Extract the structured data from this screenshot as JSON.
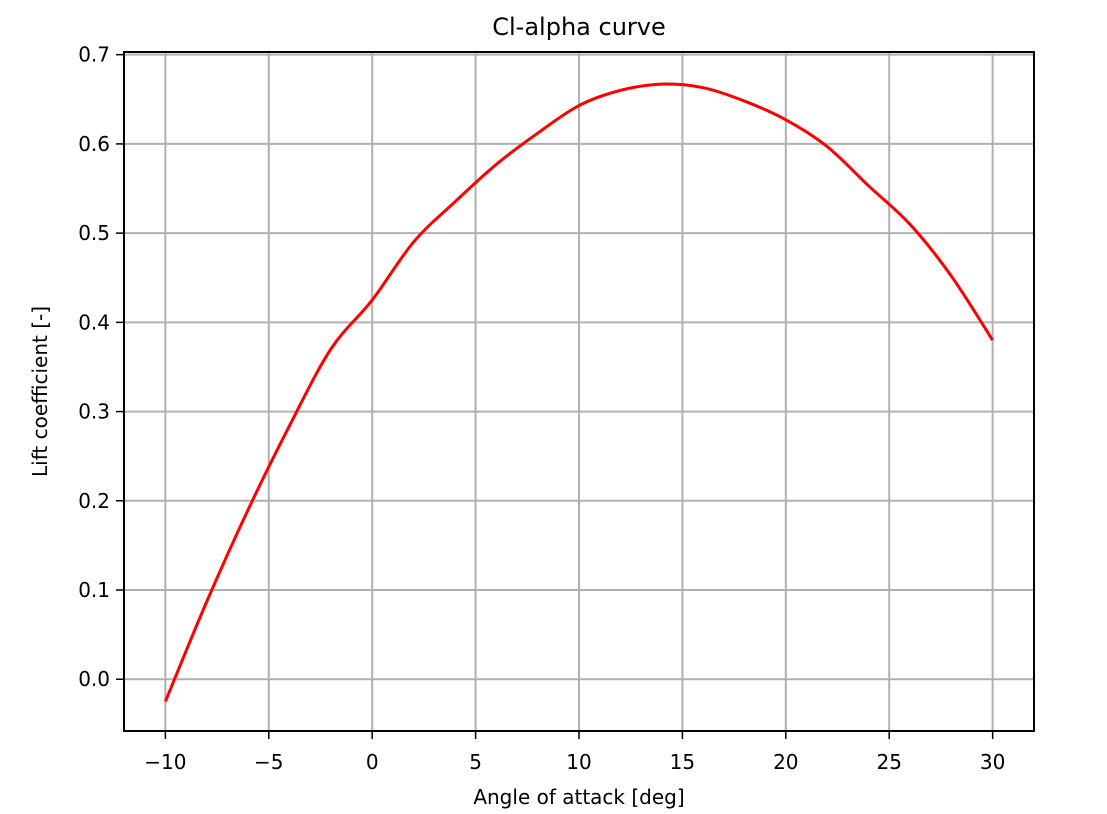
{
  "chart_data": {
    "type": "line",
    "title": "Cl-alpha curve",
    "xlabel": "Angle of attack [deg]",
    "ylabel": "Lift coefficient [-]",
    "xlim": [
      -12,
      32
    ],
    "ylim": [
      -0.058,
      0.703
    ],
    "xticks": [
      -10,
      -5,
      0,
      5,
      10,
      15,
      20,
      25,
      30
    ],
    "xtick_labels": [
      "−10",
      "−5",
      "0",
      "5",
      "10",
      "15",
      "20",
      "25",
      "30"
    ],
    "yticks": [
      0.0,
      0.1,
      0.2,
      0.3,
      0.4,
      0.5,
      0.6,
      0.7
    ],
    "ytick_labels": [
      "0.0",
      "0.1",
      "0.2",
      "0.3",
      "0.4",
      "0.5",
      "0.6",
      "0.7"
    ],
    "grid": true,
    "colors": {
      "series": "#ff0000",
      "grid": "#b0b0b0",
      "axes": "#000000"
    },
    "series": [
      {
        "x": [
          -10,
          -8,
          -6,
          -4,
          -2,
          0,
          2,
          4,
          6,
          8,
          10,
          12,
          14,
          16,
          18,
          20,
          22,
          24,
          26,
          28,
          30
        ],
        "y": [
          -0.025,
          0.087,
          0.19,
          0.284,
          0.37,
          0.425,
          0.49,
          0.535,
          0.577,
          0.612,
          0.643,
          0.66,
          0.667,
          0.663,
          0.648,
          0.627,
          0.597,
          0.553,
          0.51,
          0.452,
          0.38
        ]
      }
    ]
  }
}
